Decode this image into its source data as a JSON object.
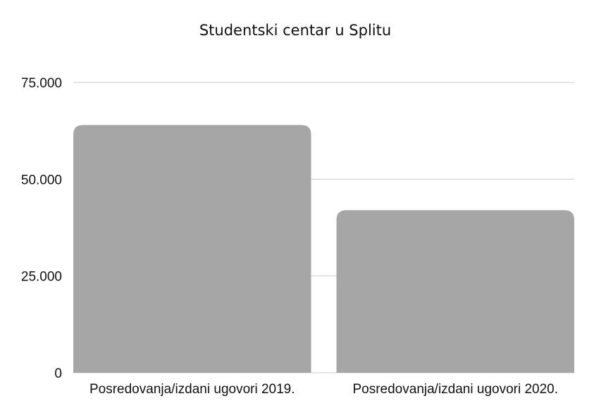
{
  "chart_data": {
    "type": "bar",
    "title": "Studentski centar u Splitu",
    "categories": [
      "Posredovanja/izdani ugovori 2019.",
      "Posredovanja/izdani ugovori 2020."
    ],
    "values": [
      64000,
      42000
    ],
    "ylim": [
      0,
      75000
    ],
    "yticks": [
      {
        "value": 0,
        "label": "0"
      },
      {
        "value": 25000,
        "label": "25.000"
      },
      {
        "value": 50000,
        "label": "50.000"
      },
      {
        "value": 75000,
        "label": "75.000"
      }
    ],
    "grid": true,
    "bar_color": "#a6a6a6",
    "xlabel": "",
    "ylabel": ""
  }
}
